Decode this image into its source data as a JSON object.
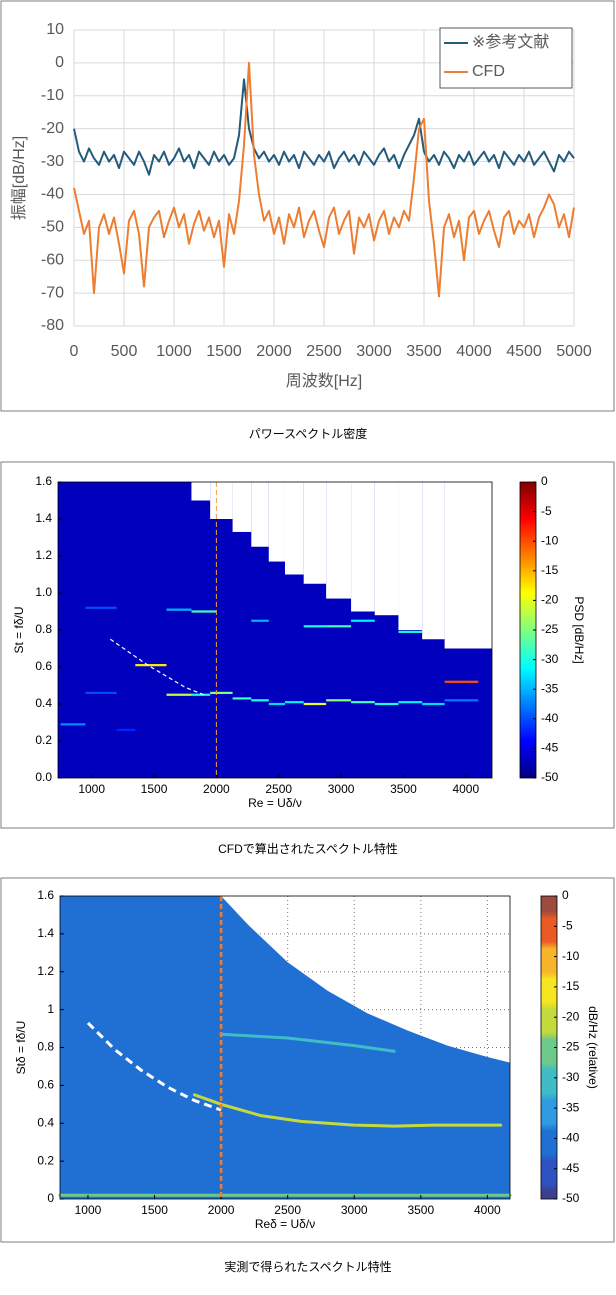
{
  "chart_data": [
    {
      "type": "line",
      "caption": "パワースペクトル密度",
      "xlabel": "周波数[Hz]",
      "ylabel": "振幅[dB/Hz]",
      "xlim": [
        0,
        5000
      ],
      "xticks": [
        0,
        500,
        1000,
        1500,
        2000,
        2500,
        3000,
        3500,
        4000,
        4500,
        5000
      ],
      "ylim": [
        -80,
        10
      ],
      "yticks": [
        10,
        0,
        -10,
        -20,
        -30,
        -40,
        -50,
        -60,
        -70,
        -80
      ],
      "grid": true,
      "legend": "upper-right",
      "x": [
        0,
        50,
        100,
        150,
        200,
        250,
        300,
        350,
        400,
        450,
        500,
        550,
        600,
        650,
        700,
        750,
        800,
        850,
        900,
        950,
        1000,
        1050,
        1100,
        1150,
        1200,
        1250,
        1300,
        1350,
        1400,
        1450,
        1500,
        1550,
        1600,
        1650,
        1700,
        1750,
        1800,
        1850,
        1900,
        1950,
        2000,
        2050,
        2100,
        2150,
        2200,
        2250,
        2300,
        2350,
        2400,
        2450,
        2500,
        2550,
        2600,
        2650,
        2700,
        2750,
        2800,
        2850,
        2900,
        2950,
        3000,
        3050,
        3100,
        3150,
        3200,
        3250,
        3300,
        3350,
        3400,
        3450,
        3500,
        3550,
        3600,
        3650,
        3700,
        3750,
        3800,
        3850,
        3900,
        3950,
        4000,
        4050,
        4100,
        4150,
        4200,
        4250,
        4300,
        4350,
        4400,
        4450,
        4500,
        4550,
        4600,
        4650,
        4700,
        4750,
        4800,
        4850,
        4900,
        4950,
        5000
      ],
      "series": [
        {
          "name": "※参考文献",
          "color": "#245b7d",
          "values": [
            -20,
            -27,
            -30,
            -26,
            -29,
            -31,
            -27,
            -30,
            -28,
            -32,
            -27,
            -29,
            -31,
            -27,
            -30,
            -34,
            -28,
            -30,
            -27,
            -31,
            -29,
            -26,
            -30,
            -28,
            -32,
            -27,
            -29,
            -31,
            -27,
            -30,
            -28,
            -31,
            -29,
            -22,
            -5,
            -20,
            -26,
            -29,
            -27,
            -30,
            -28,
            -31,
            -27,
            -30,
            -28,
            -32,
            -27,
            -29,
            -31,
            -28,
            -30,
            -27,
            -32,
            -29,
            -27,
            -30,
            -28,
            -31,
            -27,
            -29,
            -31,
            -28,
            -26,
            -30,
            -28,
            -32,
            -28,
            -25,
            -22,
            -17,
            -27,
            -30,
            -28,
            -31,
            -27,
            -29,
            -32,
            -28,
            -30,
            -27,
            -31,
            -29,
            -27,
            -30,
            -28,
            -32,
            -27,
            -29,
            -31,
            -28,
            -30,
            -27,
            -31,
            -29,
            -27,
            -30,
            -33,
            -28,
            -30,
            -27,
            -29
          ]
        },
        {
          "name": "CFD",
          "color": "#ed7d31",
          "values": [
            -38,
            -45,
            -52,
            -48,
            -70,
            -50,
            -46,
            -52,
            -47,
            -55,
            -64,
            -48,
            -45,
            -52,
            -68,
            -50,
            -47,
            -45,
            -53,
            -48,
            -44,
            -50,
            -46,
            -55,
            -49,
            -45,
            -51,
            -47,
            -53,
            -48,
            -62,
            -46,
            -52,
            -42,
            -25,
            0,
            -28,
            -40,
            -48,
            -45,
            -52,
            -47,
            -55,
            -46,
            -50,
            -44,
            -53,
            -48,
            -45,
            -51,
            -56,
            -47,
            -44,
            -52,
            -48,
            -45,
            -58,
            -47,
            -50,
            -46,
            -54,
            -48,
            -45,
            -52,
            -47,
            -50,
            -45,
            -48,
            -35,
            -20,
            -17,
            -42,
            -55,
            -71,
            -50,
            -46,
            -53,
            -48,
            -60,
            -47,
            -45,
            -52,
            -48,
            -45,
            -51,
            -56,
            -47,
            -45,
            -52,
            -48,
            -50,
            -46,
            -53,
            -47,
            -44,
            -40,
            -43,
            -50,
            -46,
            -53,
            -44
          ]
        }
      ]
    },
    {
      "type": "heatmap",
      "caption": "CFDで算出されたスペクトル特性",
      "xlabel": "Re = Uδ/ν",
      "ylabel": "St = fδ/U",
      "colorbar_label": "PSD [dB/Hz]",
      "colormap": "jet",
      "xlim": [
        730,
        4210
      ],
      "xticks": [
        1000,
        1500,
        2000,
        2500,
        3000,
        3500,
        4000
      ],
      "ylim": [
        0,
        1.6
      ],
      "yticks": [
        {
          "value": 0,
          "label": "0.0"
        },
        0.2,
        0.4,
        0.6,
        0.8,
        {
          "value": 1,
          "label": "1.0"
        },
        1.2,
        1.4,
        1.6
      ],
      "clim": [
        -50,
        0
      ],
      "cticks": [
        0,
        -5,
        -10,
        -15,
        -20,
        -25,
        -30,
        -35,
        -40,
        -45,
        -50
      ],
      "grid": false,
      "background_level": -47,
      "boundary": {
        "x": [
          730,
          1800,
          1950,
          2130,
          2280,
          2420,
          2550,
          2700,
          2880,
          3080,
          3270,
          3460,
          3650,
          3830,
          4210
        ],
        "y": [
          1.6,
          1.5,
          1.4,
          1.33,
          1.25,
          1.17,
          1.1,
          1.05,
          0.97,
          0.9,
          0.88,
          0.8,
          0.75,
          0.7
        ]
      },
      "segments": [
        {
          "x": [
            750,
            950
          ],
          "y": 0.29,
          "value": -37
        },
        {
          "x": [
            950,
            1200
          ],
          "y": 0.92,
          "value": -40
        },
        {
          "x": [
            950,
            1200
          ],
          "y": 0.46,
          "value": -40
        },
        {
          "x": [
            1200,
            1350
          ],
          "y": 0.26,
          "value": -42
        },
        {
          "x": [
            1350,
            1600
          ],
          "y": 0.61,
          "value": -18
        },
        {
          "x": [
            1600,
            1800
          ],
          "y": 0.91,
          "value": -35
        },
        {
          "x": [
            1600,
            1800
          ],
          "y": 0.45,
          "value": -22
        },
        {
          "x": [
            1800,
            2000
          ],
          "y": 0.9,
          "value": -28
        },
        {
          "x": [
            1800,
            1950
          ],
          "y": 0.45,
          "value": -30
        },
        {
          "x": [
            1950,
            2130
          ],
          "y": 0.46,
          "value": -25
        },
        {
          "x": [
            2130,
            2280
          ],
          "y": 0.43,
          "value": -28
        },
        {
          "x": [
            2280,
            2420
          ],
          "y": 0.42,
          "value": -30
        },
        {
          "x": [
            2420,
            2550
          ],
          "y": 0.4,
          "value": -33
        },
        {
          "x": [
            2550,
            2700
          ],
          "y": 0.41,
          "value": -32
        },
        {
          "x": [
            2700,
            2880
          ],
          "y": 0.4,
          "value": -20
        },
        {
          "x": [
            2880,
            3080
          ],
          "y": 0.42,
          "value": -25
        },
        {
          "x": [
            3080,
            3270
          ],
          "y": 0.41,
          "value": -28
        },
        {
          "x": [
            3270,
            3460
          ],
          "y": 0.4,
          "value": -30
        },
        {
          "x": [
            3460,
            3650
          ],
          "y": 0.41,
          "value": -32
        },
        {
          "x": [
            3650,
            3830
          ],
          "y": 0.4,
          "value": -33
        },
        {
          "x": [
            3830,
            4100
          ],
          "y": 0.42,
          "value": -38
        },
        {
          "x": [
            2700,
            2880
          ],
          "y": 0.82,
          "value": -30
        },
        {
          "x": [
            2880,
            3080
          ],
          "y": 0.82,
          "value": -28
        },
        {
          "x": [
            3080,
            3270
          ],
          "y": 0.85,
          "value": -32
        },
        {
          "x": [
            3460,
            3650
          ],
          "y": 0.79,
          "value": -30
        },
        {
          "x": [
            3830,
            4100
          ],
          "y": 0.52,
          "value": -10
        },
        {
          "x": [
            2280,
            2420
          ],
          "y": 0.85,
          "value": -35
        }
      ],
      "vline": {
        "x": 2000,
        "color": "#f0a040"
      },
      "theory_curve": {
        "x": [
          1150,
          1300,
          1450,
          1600,
          1750,
          1900
        ],
        "y": [
          0.75,
          0.68,
          0.61,
          0.55,
          0.49,
          0.45
        ],
        "color": "#ffffff"
      }
    },
    {
      "type": "heatmap",
      "caption": "実測で得られたスペクトル特性",
      "xlabel": "Reδ = Uδ/ν",
      "ylabel": "Stδ = fδ/U",
      "colorbar_label": "dB/Hz (relative)",
      "colormap": "parula",
      "xlim": [
        790,
        4170
      ],
      "xticks": [
        1000,
        1500,
        2000,
        2500,
        3000,
        3500,
        4000
      ],
      "ylim": [
        0,
        1.6
      ],
      "yticks": [
        0,
        0.2,
        0.4,
        0.6,
        0.8,
        1,
        1.2,
        1.4,
        1.6
      ],
      "clim": [
        -50,
        0
      ],
      "cticks": [
        0,
        -5,
        -10,
        -15,
        -20,
        -25,
        -30,
        -35,
        -40,
        -45,
        -50
      ],
      "grid": true,
      "background_level": -38,
      "boundary_curve": {
        "x": [
          2000,
          2200,
          2500,
          2800,
          3100,
          3400,
          3700,
          4000,
          4170
        ],
        "y": [
          1.6,
          1.45,
          1.25,
          1.1,
          0.98,
          0.89,
          0.81,
          0.75,
          0.72
        ]
      },
      "ridges": [
        {
          "x": [
            1800,
            2000,
            2300,
            2600,
            3000,
            3300,
            3600,
            4100
          ],
          "y": [
            0.55,
            0.5,
            0.44,
            0.41,
            0.39,
            0.385,
            0.39,
            0.39
          ],
          "value": -22
        },
        {
          "x": [
            2000,
            2500,
            3000,
            3300
          ],
          "y": [
            0.87,
            0.85,
            0.81,
            0.78
          ],
          "value": -28
        },
        {
          "x": [
            790,
            4170
          ],
          "y": [
            0.02,
            0.02
          ],
          "value": -25
        }
      ],
      "vline": {
        "x": 2000,
        "color": "#e8803a"
      },
      "theory_curve": {
        "x": [
          1000,
          1200,
          1400,
          1600,
          1800,
          2000
        ],
        "y": [
          0.93,
          0.79,
          0.68,
          0.59,
          0.52,
          0.47
        ],
        "color": "#ffffff"
      }
    }
  ]
}
